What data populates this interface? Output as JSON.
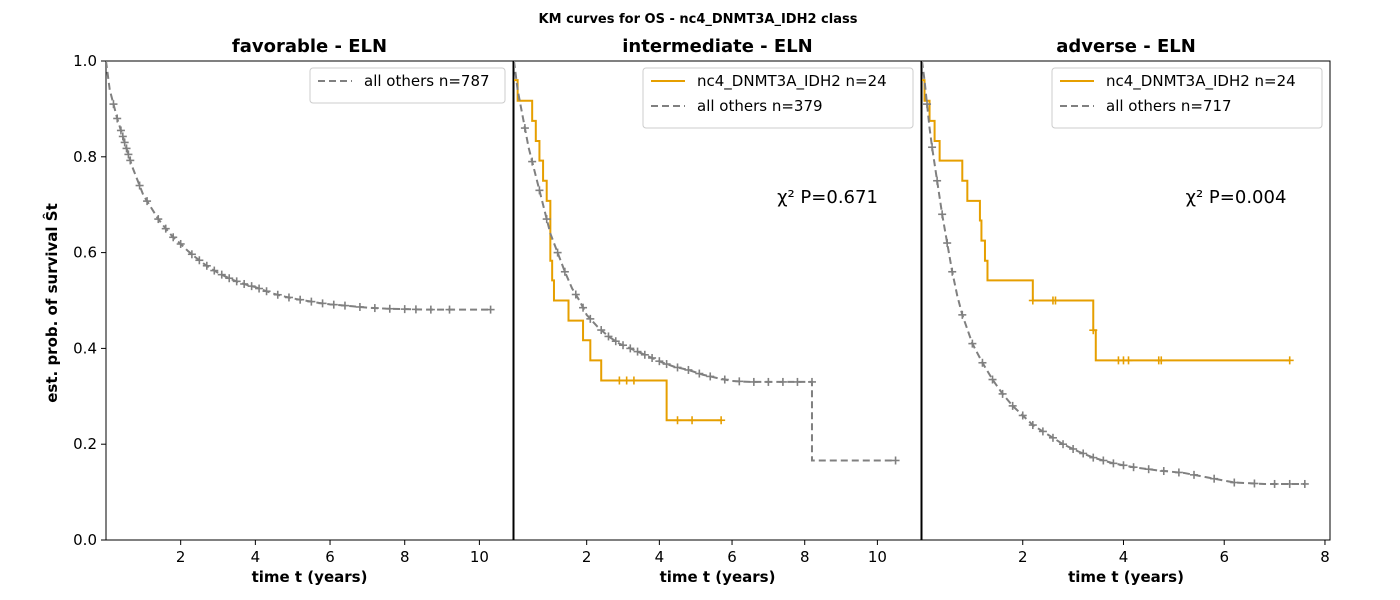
{
  "suptitle": "KM curves for OS - nc4_DNMT3A_IDH2 class",
  "ylabel": "est. prob. of survival Ŝt",
  "colors": {
    "group": "#e69f00",
    "others": "#808080"
  },
  "chart_data": [
    {
      "type": "line",
      "title": "favorable - ELN",
      "xlabel": "time t (years)",
      "ylabel": "est. prob. of survival Ŝt",
      "xlim": [
        0,
        10.9
      ],
      "ylim": [
        0,
        1.0
      ],
      "xticks": [
        2,
        4,
        6,
        8,
        10
      ],
      "yticks": [
        0.0,
        0.2,
        0.4,
        0.6,
        0.8,
        1.0
      ],
      "legend": "top-right",
      "annotation": "",
      "series": [
        {
          "name": "all others n=787",
          "style": "dashed",
          "color": "#808080",
          "x": [
            0,
            0.05,
            0.1,
            0.2,
            0.3,
            0.4,
            0.5,
            0.6,
            0.7,
            0.8,
            1.0,
            1.2,
            1.4,
            1.6,
            1.8,
            2.0,
            2.2,
            2.4,
            2.6,
            2.8,
            3.0,
            3.2,
            3.4,
            3.6,
            3.8,
            4.0,
            4.2,
            4.5,
            4.8,
            5.1,
            5.4,
            5.7,
            6.0,
            6.3,
            6.6,
            7.0,
            7.5,
            8.0,
            8.6,
            9.2,
            10.3
          ],
          "y": [
            1.0,
            0.97,
            0.94,
            0.91,
            0.88,
            0.855,
            0.83,
            0.805,
            0.78,
            0.76,
            0.72,
            0.695,
            0.67,
            0.65,
            0.632,
            0.618,
            0.603,
            0.59,
            0.578,
            0.567,
            0.558,
            0.55,
            0.543,
            0.537,
            0.532,
            0.528,
            0.522,
            0.514,
            0.508,
            0.503,
            0.499,
            0.495,
            0.492,
            0.49,
            0.488,
            0.485,
            0.483,
            0.482,
            0.481,
            0.481,
            0.481
          ],
          "censor_x": [
            0.2,
            0.3,
            0.4,
            0.45,
            0.5,
            0.55,
            0.6,
            0.65,
            0.9,
            1.1,
            1.4,
            1.6,
            1.8,
            2.0,
            2.3,
            2.5,
            2.7,
            2.9,
            3.1,
            3.3,
            3.5,
            3.7,
            3.9,
            4.1,
            4.3,
            4.6,
            4.9,
            5.2,
            5.5,
            5.8,
            6.1,
            6.4,
            6.8,
            7.2,
            7.6,
            8.0,
            8.3,
            8.7,
            9.2,
            10.3
          ]
        }
      ]
    },
    {
      "type": "line",
      "title": "intermediate - ELN",
      "xlabel": "time t (years)",
      "ylabel": "",
      "xlim": [
        0,
        11.2
      ],
      "ylim": [
        0,
        1.0
      ],
      "xticks": [
        2,
        4,
        6,
        8,
        10
      ],
      "yticks": [
        0.0,
        0.2,
        0.4,
        0.6,
        0.8,
        1.0
      ],
      "legend": "top-right",
      "annotation": "χ² P=0.671",
      "series": [
        {
          "name": "nc4_DNMT3A_IDH2 n=24",
          "style": "step",
          "color": "#e69f00",
          "x": [
            0,
            0.1,
            0.5,
            0.6,
            0.7,
            0.8,
            0.9,
            1.0,
            1.05,
            1.1,
            1.2,
            1.5,
            1.9,
            2.1,
            2.4,
            4.2,
            5.7
          ],
          "y": [
            0.96,
            0.917,
            0.875,
            0.833,
            0.792,
            0.75,
            0.708,
            0.583,
            0.542,
            0.5,
            0.5,
            0.458,
            0.417,
            0.375,
            0.333,
            0.25,
            0.25
          ],
          "censor_x": [
            2.9,
            3.1,
            3.3,
            4.5,
            4.9,
            5.7
          ]
        },
        {
          "name": "all others n=379",
          "style": "dashed",
          "color": "#808080",
          "x": [
            0,
            0.1,
            0.2,
            0.3,
            0.4,
            0.5,
            0.6,
            0.7,
            0.8,
            0.9,
            1.0,
            1.2,
            1.4,
            1.6,
            1.8,
            2.0,
            2.3,
            2.6,
            2.9,
            3.2,
            3.5,
            3.8,
            4.1,
            4.4,
            4.8,
            5.2,
            5.6,
            6.0,
            6.5,
            7.0,
            7.5,
            8.2,
            8.2,
            10.5
          ],
          "y": [
            1.0,
            0.94,
            0.9,
            0.86,
            0.82,
            0.79,
            0.76,
            0.73,
            0.7,
            0.67,
            0.64,
            0.6,
            0.56,
            0.525,
            0.5,
            0.47,
            0.445,
            0.425,
            0.41,
            0.4,
            0.39,
            0.38,
            0.37,
            0.362,
            0.355,
            0.345,
            0.338,
            0.332,
            0.33,
            0.33,
            0.33,
            0.33,
            0.166,
            0.166
          ],
          "censor_x": [
            0.3,
            0.5,
            0.7,
            0.9,
            1.2,
            1.4,
            1.7,
            1.9,
            2.1,
            2.4,
            2.6,
            2.8,
            3.0,
            3.2,
            3.4,
            3.6,
            3.8,
            4.0,
            4.2,
            4.5,
            4.8,
            5.1,
            5.4,
            5.8,
            6.2,
            6.6,
            7.0,
            7.4,
            7.8,
            8.2,
            10.5
          ]
        }
      ]
    },
    {
      "type": "line",
      "title": "adverse - ELN",
      "xlabel": "time t (years)",
      "ylabel": "",
      "xlim": [
        0,
        8.1
      ],
      "ylim": [
        0,
        1.0
      ],
      "xticks": [
        2,
        4,
        6,
        8
      ],
      "yticks": [
        0.0,
        0.2,
        0.4,
        0.6,
        0.8,
        1.0
      ],
      "legend": "top-right",
      "annotation": "χ² P=0.004",
      "series": [
        {
          "name": "nc4_DNMT3A_IDH2 n=24",
          "style": "step",
          "color": "#e69f00",
          "x": [
            0,
            0.05,
            0.15,
            0.25,
            0.35,
            0.8,
            0.9,
            1.15,
            1.18,
            1.25,
            1.3,
            2.2,
            3.4,
            3.45,
            7.3
          ],
          "y": [
            0.96,
            0.917,
            0.875,
            0.833,
            0.792,
            0.75,
            0.708,
            0.667,
            0.625,
            0.583,
            0.542,
            0.5,
            0.438,
            0.375,
            0.375
          ],
          "censor_x": [
            2.2,
            2.6,
            2.65,
            3.4,
            3.9,
            4.0,
            4.1,
            4.7,
            4.75,
            7.3
          ]
        },
        {
          "name": "all others n=717",
          "style": "dashed",
          "color": "#808080",
          "x": [
            0,
            0.05,
            0.1,
            0.15,
            0.2,
            0.3,
            0.4,
            0.5,
            0.6,
            0.7,
            0.8,
            0.9,
            1.0,
            1.2,
            1.4,
            1.6,
            1.8,
            2.0,
            2.2,
            2.5,
            2.8,
            3.1,
            3.4,
            3.8,
            4.2,
            4.7,
            5.2,
            5.7,
            6.2,
            6.8,
            7.3,
            7.6
          ],
          "y": [
            1.0,
            0.96,
            0.91,
            0.86,
            0.82,
            0.75,
            0.68,
            0.62,
            0.56,
            0.51,
            0.47,
            0.44,
            0.41,
            0.37,
            0.335,
            0.305,
            0.28,
            0.26,
            0.24,
            0.22,
            0.2,
            0.185,
            0.172,
            0.16,
            0.152,
            0.145,
            0.14,
            0.13,
            0.12,
            0.117,
            0.117,
            0.117
          ],
          "censor_x": [
            0.1,
            0.2,
            0.3,
            0.4,
            0.5,
            0.6,
            0.8,
            1.0,
            1.2,
            1.4,
            1.6,
            1.8,
            2.0,
            2.2,
            2.4,
            2.6,
            2.8,
            3.0,
            3.2,
            3.4,
            3.6,
            3.8,
            4.0,
            4.2,
            4.5,
            4.8,
            5.1,
            5.4,
            5.8,
            6.2,
            6.6,
            7.0,
            7.3,
            7.6
          ]
        }
      ]
    }
  ]
}
